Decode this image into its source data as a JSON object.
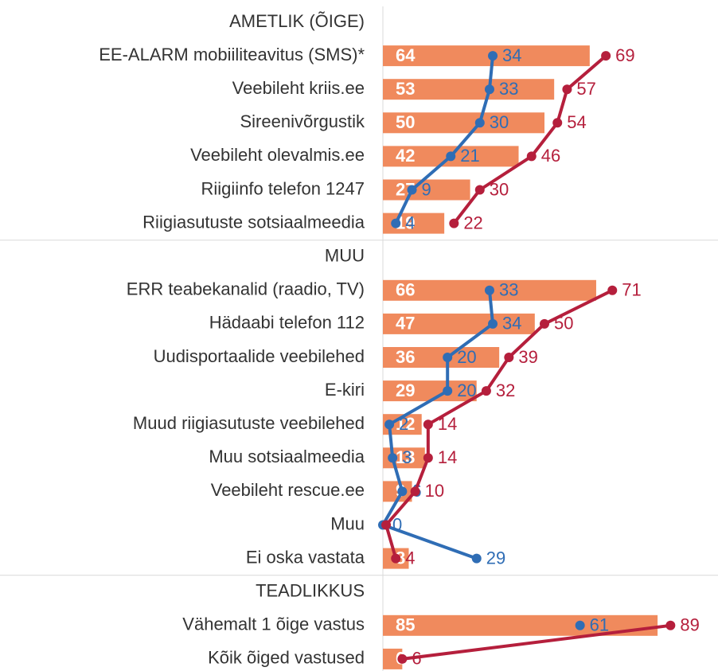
{
  "chart_data": {
    "type": "bar-line",
    "categories": [
      "AMETLIK (ÕIGE)",
      "EE-ALARM mobiiliteavitus (SMS)*",
      "Veebileht kriis.ee",
      "Sireenivõrgustik",
      "Veebileht olevalmis.ee",
      "Riigiinfo telefon 1247",
      "Riigiasutuste sotsiaalmeedia",
      "MUU",
      "ERR teabekanalid (raadio, TV)",
      "Hädaabi telefon 112",
      "Uudisportaalide veebilehed",
      "E-kiri",
      "Muud riigiasutuste veebilehed",
      "Muu sotsiaalmeedia",
      "Veebileht rescue.ee",
      "Muu",
      "Ei oska vastata",
      "TEADLIKKUS",
      "Vähemalt 1 õige vastus",
      "Kõik õiged vastused"
    ],
    "series": [
      {
        "type": "bar",
        "color": "#f08a5d",
        "values": [
          null,
          64,
          53,
          50,
          42,
          27,
          19,
          null,
          66,
          47,
          36,
          29,
          12,
          13,
          9,
          null,
          8,
          null,
          85,
          6
        ]
      },
      {
        "type": "line",
        "color": "#2f6db5",
        "values": [
          null,
          34,
          33,
          30,
          21,
          9,
          4,
          null,
          33,
          34,
          20,
          20,
          2,
          3,
          6,
          0,
          29,
          null,
          61,
          null
        ]
      },
      {
        "type": "line",
        "color": "#b51f3c",
        "values": [
          null,
          69,
          57,
          54,
          46,
          30,
          22,
          null,
          71,
          50,
          39,
          32,
          14,
          14,
          10,
          1,
          4,
          null,
          89,
          6
        ],
        "value_labels": [
          null,
          "69",
          "57",
          "54",
          "46",
          "30",
          "22",
          null,
          "71",
          "50",
          "39",
          "32",
          "14",
          "14",
          "10",
          null,
          "4",
          null,
          "89",
          "6"
        ]
      }
    ]
  }
}
